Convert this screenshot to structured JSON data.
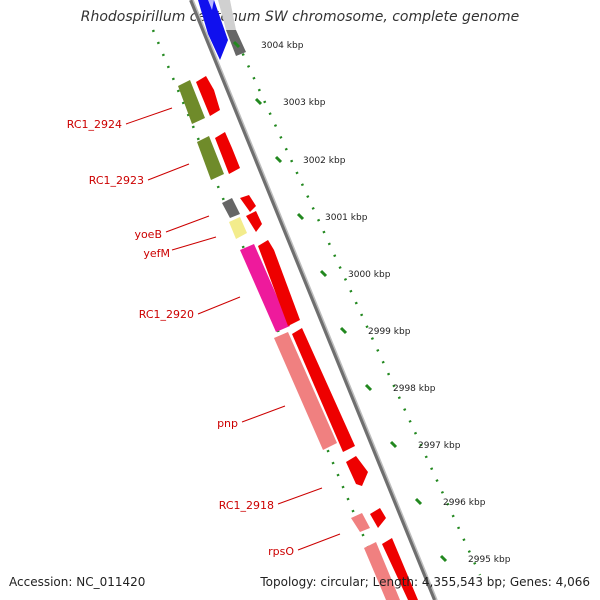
{
  "title": "Rhodospirillum centenum SW chromosome, complete genome",
  "footer": {
    "accession": "Accession: NC_011420",
    "summary": "Topology: circular; Length: 4,355,543 bp; Genes: 4,066"
  },
  "scale": {
    "ticks": [
      "3004 kbp",
      "3003 kbp",
      "3002 kbp",
      "3001 kbp",
      "3000 kbp",
      "2999 kbp",
      "2998 kbp",
      "2997 kbp",
      "2996 kbp",
      "2995 kbp"
    ]
  },
  "gene_labels": [
    "RC1_2924",
    "RC1_2923",
    "yoeB",
    "yefM",
    "RC1_2920",
    "pnp",
    "RC1_2918",
    "rpsO"
  ],
  "colors": {
    "backbone": "#8c8c8c",
    "cds_forward": "#ee0000",
    "label": "#cc0000",
    "dots": "#22881f",
    "tick_label": "#222222"
  }
}
